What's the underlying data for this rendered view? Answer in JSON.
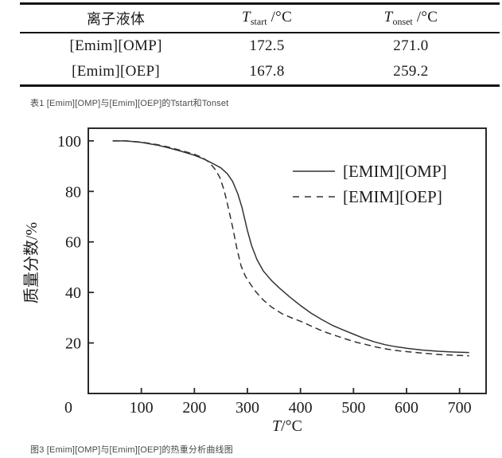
{
  "table": {
    "caption": "表1 [Emim][OMP]与[Emim][OEP]的Tstart和Tonset",
    "headers": {
      "col1": "离子液体",
      "col2": {
        "symbol": "T",
        "sub": "start",
        "unit": " /°C"
      },
      "col3": {
        "symbol": "T",
        "sub": "onset",
        "unit": " /°C"
      }
    },
    "rows": [
      {
        "name": "[Emim][OMP]",
        "t_start": "172.5",
        "t_onset": "271.0"
      },
      {
        "name": "[Emim][OEP]",
        "t_start": "167.8",
        "t_onset": "259.2"
      }
    ]
  },
  "figure": {
    "caption": "图3 [Emim][OMP]与[Emim][OEP]的热重分析曲线图"
  },
  "chart_data": {
    "type": "line",
    "title": "",
    "xlabel": "T/°C",
    "xlabel_symbol": "T",
    "xlabel_unit": "/°C",
    "ylabel": "质量分数/%",
    "xlim": [
      0,
      750
    ],
    "ylim": [
      0,
      105
    ],
    "xticks": [
      0,
      100,
      200,
      300,
      400,
      500,
      600,
      700
    ],
    "yticks": [
      20,
      40,
      60,
      80,
      100
    ],
    "grid": false,
    "legend_position": "upper-right-inside",
    "line_color": "#333333",
    "series": [
      {
        "name": "[EMIM][OMP]",
        "style": "solid",
        "points": [
          [
            46,
            100
          ],
          [
            70,
            100
          ],
          [
            100,
            99.4
          ],
          [
            130,
            98.3
          ],
          [
            150,
            97.3
          ],
          [
            175,
            95.9
          ],
          [
            200,
            94.3
          ],
          [
            220,
            92.6
          ],
          [
            235,
            91
          ],
          [
            250,
            89.3
          ],
          [
            262,
            87
          ],
          [
            272,
            84
          ],
          [
            282,
            79
          ],
          [
            290,
            73.5
          ],
          [
            300,
            64.5
          ],
          [
            308,
            58.5
          ],
          [
            318,
            53
          ],
          [
            330,
            48.5
          ],
          [
            345,
            44.8
          ],
          [
            360,
            41.8
          ],
          [
            380,
            38.2
          ],
          [
            400,
            34.8
          ],
          [
            420,
            31.8
          ],
          [
            440,
            29.3
          ],
          [
            460,
            27
          ],
          [
            480,
            25.2
          ],
          [
            500,
            23.5
          ],
          [
            520,
            21.8
          ],
          [
            540,
            20.4
          ],
          [
            560,
            19.3
          ],
          [
            580,
            18.5
          ],
          [
            600,
            17.9
          ],
          [
            630,
            17.2
          ],
          [
            660,
            16.7
          ],
          [
            690,
            16.4
          ],
          [
            718,
            16.2
          ]
        ]
      },
      {
        "name": "[EMIM][OEP]",
        "style": "dashed",
        "points": [
          [
            46,
            100
          ],
          [
            70,
            100
          ],
          [
            100,
            99.5
          ],
          [
            130,
            98.5
          ],
          [
            150,
            97.6
          ],
          [
            175,
            96.2
          ],
          [
            200,
            94.7
          ],
          [
            215,
            93.4
          ],
          [
            228,
            91.5
          ],
          [
            240,
            88.5
          ],
          [
            248,
            85.5
          ],
          [
            256,
            80.5
          ],
          [
            264,
            73.5
          ],
          [
            272,
            66
          ],
          [
            280,
            57.5
          ],
          [
            288,
            50.5
          ],
          [
            296,
            46.5
          ],
          [
            305,
            43.5
          ],
          [
            315,
            40.5
          ],
          [
            330,
            37
          ],
          [
            345,
            34.3
          ],
          [
            365,
            31.6
          ],
          [
            385,
            29.8
          ],
          [
            405,
            28.2
          ],
          [
            425,
            26.2
          ],
          [
            445,
            24.4
          ],
          [
            465,
            23
          ],
          [
            485,
            21.6
          ],
          [
            505,
            20.3
          ],
          [
            525,
            19.3
          ],
          [
            545,
            18.3
          ],
          [
            565,
            17.5
          ],
          [
            585,
            16.9
          ],
          [
            605,
            16.5
          ],
          [
            635,
            15.9
          ],
          [
            665,
            15.4
          ],
          [
            695,
            15.1
          ],
          [
            718,
            14.9
          ]
        ]
      }
    ]
  }
}
